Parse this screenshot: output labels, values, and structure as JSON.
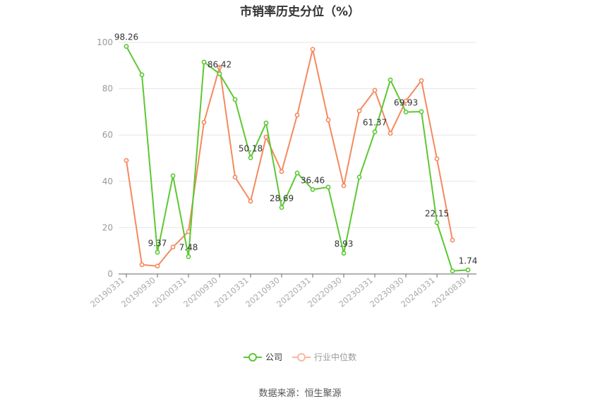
{
  "title": "市销率历史分位（%）",
  "source": "数据来源：恒生聚源",
  "legend": {
    "company": "公司",
    "industry": "行业中位数"
  },
  "colors": {
    "company": "#5cc832",
    "industry": "#f5895e",
    "grid": "#e6e6e6",
    "axis": "#666666"
  },
  "chart_data": {
    "type": "line",
    "title": "市销率历史分位（%）",
    "xlabel": "",
    "ylabel": "",
    "ylim": [
      0,
      100
    ],
    "yticks": [
      0,
      20,
      40,
      60,
      80,
      100
    ],
    "grid": true,
    "legend_position": "bottom",
    "x": [
      "20190331",
      "20190630",
      "20190930",
      "20191231",
      "20200331",
      "20200630",
      "20200930",
      "20201231",
      "20210331",
      "20210630",
      "20210930",
      "20211231",
      "20220331",
      "20220630",
      "20220930",
      "20221231",
      "20230331",
      "20230630",
      "20230930",
      "20231231",
      "20240331",
      "20240630",
      "20240830"
    ],
    "xtick_labels": [
      "20190331",
      "20190930",
      "20200331",
      "20200930",
      "20210331",
      "20210930",
      "20220331",
      "20220930",
      "20230331",
      "20230930",
      "20240331",
      "20240830"
    ],
    "series": [
      {
        "name": "公司",
        "values": [
          98.26,
          86.0,
          9.37,
          42.4,
          7.48,
          91.5,
          86.42,
          75.3,
          50.18,
          65.2,
          28.69,
          43.6,
          36.46,
          37.5,
          8.93,
          41.8,
          61.37,
          83.8,
          69.93,
          70.1,
          22.15,
          1.3,
          1.74
        ],
        "labeled_points": {
          "0": "98.26",
          "2": "9.37",
          "4": "7.48",
          "6": "86.42",
          "8": "50.18",
          "10": "28.69",
          "12": "36.46",
          "14": "8.93",
          "16": "61.37",
          "18": "69.93",
          "20": "22.15",
          "22": "1.74"
        }
      },
      {
        "name": "行业中位数",
        "values": [
          49.0,
          4.0,
          3.4,
          11.6,
          18.3,
          65.5,
          89.3,
          41.8,
          31.4,
          59.1,
          44.2,
          68.6,
          97.0,
          66.5,
          38.1,
          70.4,
          79.3,
          60.7,
          74.7,
          83.5,
          49.7,
          14.6,
          null
        ]
      }
    ]
  }
}
